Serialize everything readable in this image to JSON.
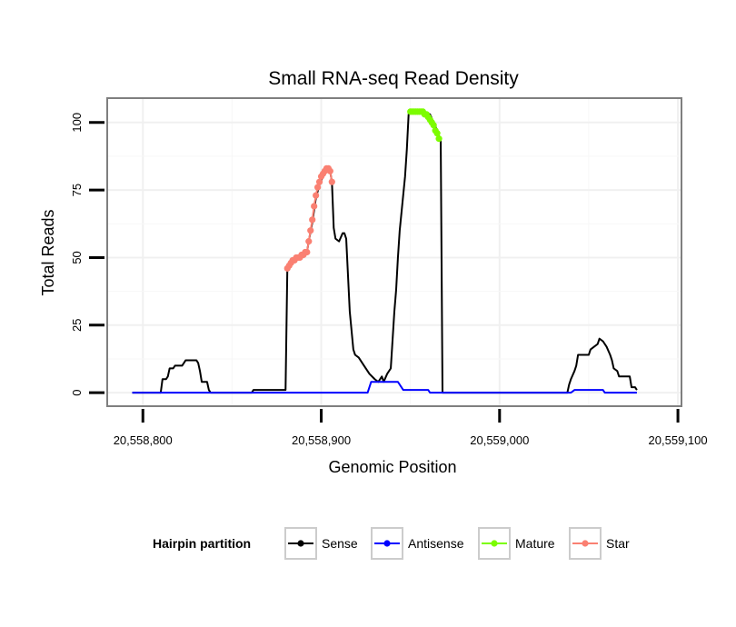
{
  "chart_data": {
    "type": "line",
    "title": "Small RNA-seq Read Density",
    "xlabel": "Genomic Position",
    "ylabel": "Total Reads",
    "xlim": [
      20558780,
      20559102
    ],
    "ylim": [
      -5,
      109
    ],
    "x_ticks": [
      20558800,
      20558900,
      20559000,
      20559100
    ],
    "x_tick_labels": [
      "20,558,800",
      "20,558,900",
      "20,559,000",
      "20,559,100"
    ],
    "y_ticks": [
      0,
      25,
      50,
      75,
      100
    ],
    "y_tick_labels": [
      "0",
      "25",
      "50",
      "75",
      "100"
    ],
    "legend": {
      "title": "Hairpin partition",
      "position": "bottom",
      "entries": [
        {
          "name": "Sense",
          "color": "#000000"
        },
        {
          "name": "Antisense",
          "color": "#0000ff"
        },
        {
          "name": "Mature",
          "color": "#7cfc00"
        },
        {
          "name": "Star",
          "color": "#fa8072"
        }
      ]
    },
    "series": [
      {
        "name": "Sense",
        "color": "#000000",
        "points": [
          [
            20558794,
            0
          ],
          [
            20558810,
            0
          ],
          [
            20558811,
            5
          ],
          [
            20558813,
            5
          ],
          [
            20558814,
            6
          ],
          [
            20558815,
            9
          ],
          [
            20558817,
            9
          ],
          [
            20558818,
            10
          ],
          [
            20558822,
            10
          ],
          [
            20558823,
            11
          ],
          [
            20558824,
            12
          ],
          [
            20558830,
            12
          ],
          [
            20558831,
            11
          ],
          [
            20558832,
            8
          ],
          [
            20558833,
            4
          ],
          [
            20558836,
            4
          ],
          [
            20558837,
            1
          ],
          [
            20558838,
            0
          ],
          [
            20558861,
            0
          ],
          [
            20558862,
            1
          ],
          [
            20558880,
            1
          ],
          [
            20558881,
            46
          ],
          [
            20558883,
            48
          ],
          [
            20558885,
            49
          ],
          [
            20558887,
            50
          ],
          [
            20558890,
            51
          ],
          [
            20558892,
            52
          ],
          [
            20558893,
            56
          ],
          [
            20558895,
            63
          ],
          [
            20558897,
            72
          ],
          [
            20558899,
            77
          ],
          [
            20558901,
            80
          ],
          [
            20558903,
            83
          ],
          [
            20558905,
            82
          ],
          [
            20558906,
            78
          ],
          [
            20558907,
            61
          ],
          [
            20558908,
            57
          ],
          [
            20558910,
            56
          ],
          [
            20558912,
            59
          ],
          [
            20558913,
            59
          ],
          [
            20558914,
            57
          ],
          [
            20558916,
            30
          ],
          [
            20558918,
            16
          ],
          [
            20558919,
            14
          ],
          [
            20558921,
            13
          ],
          [
            20558924,
            10
          ],
          [
            20558927,
            7
          ],
          [
            20558930,
            5
          ],
          [
            20558932,
            4
          ],
          [
            20558934,
            6
          ],
          [
            20558935,
            4
          ],
          [
            20558937,
            7
          ],
          [
            20558939,
            9
          ],
          [
            20558941,
            30
          ],
          [
            20558942,
            38
          ],
          [
            20558943,
            50
          ],
          [
            20558944,
            60
          ],
          [
            20558947,
            80
          ],
          [
            20558948,
            90
          ],
          [
            20558949,
            103
          ],
          [
            20558951,
            104
          ],
          [
            20558958,
            104
          ],
          [
            20558961,
            103
          ],
          [
            20558963,
            100
          ],
          [
            20558965,
            97
          ],
          [
            20558966,
            95
          ],
          [
            20558967,
            93
          ],
          [
            20558968,
            0
          ],
          [
            20559038,
            0
          ],
          [
            20559039,
            3
          ],
          [
            20559040,
            5
          ],
          [
            20559042,
            8
          ],
          [
            20559043,
            10
          ],
          [
            20559044,
            14
          ],
          [
            20559050,
            14
          ],
          [
            20559051,
            16
          ],
          [
            20559053,
            17
          ],
          [
            20559055,
            18
          ],
          [
            20559056,
            20
          ],
          [
            20559058,
            19
          ],
          [
            20559060,
            17
          ],
          [
            20559062,
            14
          ],
          [
            20559063,
            12
          ],
          [
            20559064,
            9
          ],
          [
            20559066,
            8
          ],
          [
            20559067,
            6
          ],
          [
            20559073,
            6
          ],
          [
            20559074,
            2
          ],
          [
            20559076,
            2
          ],
          [
            20559077,
            1
          ]
        ]
      },
      {
        "name": "Antisense",
        "color": "#0000ff",
        "points": [
          [
            20558794,
            0
          ],
          [
            20558926,
            0
          ],
          [
            20558928,
            4
          ],
          [
            20558943,
            4
          ],
          [
            20558946,
            1
          ],
          [
            20558960,
            1
          ],
          [
            20558961,
            0
          ],
          [
            20559040,
            0
          ],
          [
            20559042,
            1
          ],
          [
            20559058,
            1
          ],
          [
            20559059,
            0
          ],
          [
            20559077,
            0
          ]
        ]
      },
      {
        "name": "Mature",
        "color": "#7cfc00",
        "points": [
          [
            20558950,
            104
          ],
          [
            20558951,
            104
          ],
          [
            20558952,
            104
          ],
          [
            20558953,
            104
          ],
          [
            20558954,
            104
          ],
          [
            20558955,
            104
          ],
          [
            20558956,
            104
          ],
          [
            20558957,
            104
          ],
          [
            20558958,
            103
          ],
          [
            20558959,
            103
          ],
          [
            20558960,
            102
          ],
          [
            20558961,
            101
          ],
          [
            20558962,
            100
          ],
          [
            20558963,
            99
          ],
          [
            20558964,
            97
          ],
          [
            20558965,
            96
          ],
          [
            20558966,
            94
          ]
        ]
      },
      {
        "name": "Star",
        "color": "#fa8072",
        "points": [
          [
            20558881,
            46
          ],
          [
            20558882,
            47
          ],
          [
            20558883,
            48
          ],
          [
            20558884,
            49
          ],
          [
            20558885,
            49
          ],
          [
            20558886,
            50
          ],
          [
            20558887,
            50
          ],
          [
            20558888,
            50
          ],
          [
            20558889,
            51
          ],
          [
            20558890,
            51
          ],
          [
            20558891,
            52
          ],
          [
            20558892,
            52
          ],
          [
            20558893,
            56
          ],
          [
            20558894,
            60
          ],
          [
            20558895,
            64
          ],
          [
            20558896,
            69
          ],
          [
            20558897,
            73
          ],
          [
            20558898,
            76
          ],
          [
            20558899,
            78
          ],
          [
            20558900,
            80
          ],
          [
            20558901,
            81
          ],
          [
            20558902,
            82
          ],
          [
            20558903,
            83
          ],
          [
            20558904,
            83
          ],
          [
            20558905,
            82
          ],
          [
            20558906,
            78
          ]
        ]
      }
    ]
  }
}
